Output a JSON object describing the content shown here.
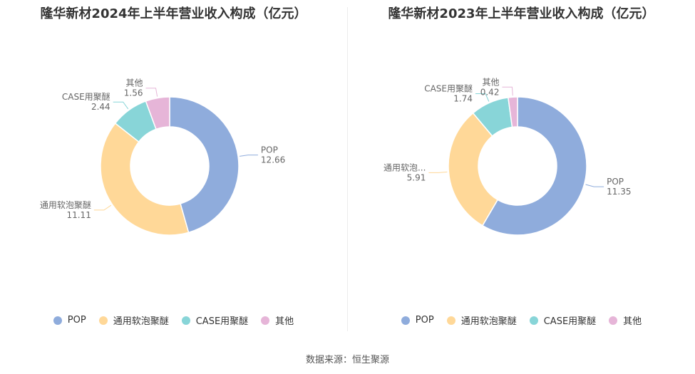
{
  "colors": [
    "#8facdc",
    "#ffd898",
    "#88d5d8",
    "#e6b5d8"
  ],
  "legend": [
    "POP",
    "通用软泡聚醚",
    "CASE用聚醚",
    "其他"
  ],
  "source": "数据来源：恒生聚源",
  "chart_data": [
    {
      "type": "pie",
      "title": "隆华新材2024年上半年营业收入构成（亿元）",
      "categories": [
        "POP",
        "通用软泡聚醚",
        "CASE用聚醚",
        "其他"
      ],
      "labels": [
        "POP",
        "通用软泡聚醚",
        "CASE用聚醚",
        "其他"
      ],
      "values": [
        12.66,
        11.11,
        2.44,
        1.56
      ],
      "legend_position": "bottom"
    },
    {
      "type": "pie",
      "title": "隆华新材2023年上半年营业收入构成（亿元）",
      "categories": [
        "POP",
        "通用软泡聚醚",
        "CASE用聚醚",
        "其他"
      ],
      "labels": [
        "POP",
        "通用软泡...",
        "CASE用聚醚",
        "其他"
      ],
      "values": [
        11.35,
        5.91,
        1.74,
        0.42
      ],
      "legend_position": "bottom"
    }
  ]
}
